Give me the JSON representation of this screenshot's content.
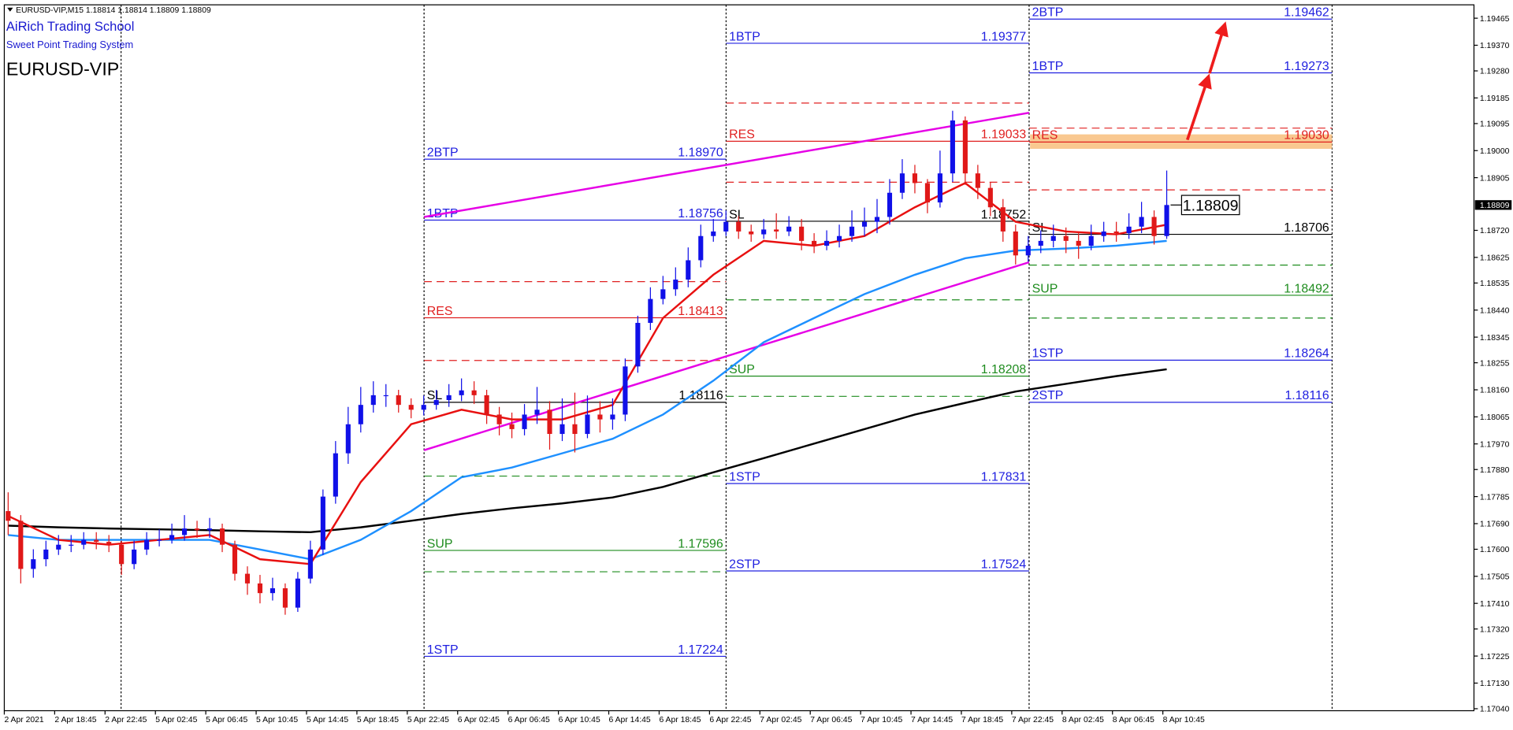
{
  "chart_data": {
    "type": "candlestick",
    "ticker_line": "EURUSD-VIP,M15 1.18814 1.18814 1.18809 1.18809",
    "brand": "AiRich Trading School",
    "subtitle": "Sweet Point Trading System",
    "title": "EURUSD-VIP",
    "current_price": 1.18809,
    "ylim": [
      1.17033,
      1.19512
    ],
    "yticks": [
      1.19465,
      {
        "value": 1.1937,
        "label": "1.19370"
      },
      {
        "value": 1.1928,
        "label": "1.19280"
      },
      1.19185,
      1.19095,
      {
        "value": 1.19,
        "label": "1.19000"
      },
      1.18905,
      {
        "value": 1.1872,
        "label": "1.18720"
      },
      1.18625,
      1.18535,
      {
        "value": 1.1844,
        "label": "1.18440"
      },
      1.18345,
      1.18255,
      {
        "value": 1.1816,
        "label": "1.18160"
      },
      1.18065,
      {
        "value": 1.1797,
        "label": "1.17970"
      },
      {
        "value": 1.1788,
        "label": "1.17880"
      },
      1.17785,
      {
        "value": 1.1769,
        "label": "1.17690"
      },
      {
        "value": 1.176,
        "label": "1.17600"
      },
      1.17505,
      {
        "value": 1.1741,
        "label": "1.17410"
      },
      {
        "value": 1.1732,
        "label": "1.17320"
      },
      1.17225,
      {
        "value": 1.1713,
        "label": "1.17130"
      },
      {
        "value": 1.1704,
        "label": "1.17040"
      }
    ],
    "grid": false,
    "categories": [
      "2 Apr 2021",
      "2 Apr 18:45",
      "2 Apr 22:45",
      "5 Apr 02:45",
      "5 Apr 06:45",
      "5 Apr 10:45",
      "5 Apr 14:45",
      "5 Apr 18:45",
      "5 Apr 22:45",
      "6 Apr 02:45",
      "6 Apr 06:45",
      "6 Apr 10:45",
      "6 Apr 14:45",
      "6 Apr 18:45",
      "6 Apr 22:45",
      "7 Apr 02:45",
      "7 Apr 06:45",
      "7 Apr 10:45",
      "7 Apr 14:45",
      "7 Apr 18:45",
      "7 Apr 22:45",
      "8 Apr 02:45",
      "8 Apr 06:45",
      "8 Apr 10:45"
    ],
    "bull_color": "#1010e8",
    "bear_color": "#e01818",
    "open": [
      1.17734,
      1.177,
      1.17531,
      1.17565,
      1.17599,
      1.17616,
      1.17616,
      1.17633,
      1.17626,
      1.17616,
      1.17548,
      1.17599,
      1.17633,
      1.17633,
      1.1765,
      1.17673,
      1.17667,
      1.17673,
      1.17616,
      1.17514,
      1.1748,
      1.17446,
      1.17463,
      1.17395,
      1.17497,
      1.17599,
      1.17785,
      1.17937,
      1.18039,
      1.18107,
      1.18141,
      1.18141,
      1.18107,
      1.1809,
      1.18107,
      1.18124,
      1.18141,
      1.18158,
      1.18141,
      1.18073,
      1.18039,
      1.18022,
      1.18073,
      1.1809,
      1.18005,
      1.18039,
      1.18005,
      1.18073,
      1.18056,
      1.18073,
      1.18242,
      1.18395,
      1.18479,
      1.18513,
      1.18547,
      1.18615,
      1.187,
      1.18716,
      1.1875,
      1.18716,
      1.18706,
      1.18723,
      1.18716,
      1.18733,
      1.18683,
      1.18666,
      1.18683,
      1.187,
      1.18733,
      1.1875,
      1.18767,
      1.18852,
      1.1892,
      1.18886,
      1.18818,
      1.1892,
      1.19106,
      1.1892,
      1.18869,
      1.18801,
      1.18716,
      1.18632,
      1.18666,
      1.18683,
      1.187,
      1.18683,
      1.18666,
      1.187,
      1.18716,
      1.1871,
      1.18733,
      1.18767,
      1.187
    ],
    "high": [
      1.178,
      1.1772,
      1.176,
      1.1763,
      1.1765,
      1.1765,
      1.1766,
      1.1766,
      1.1765,
      1.1763,
      1.1763,
      1.1766,
      1.1767,
      1.1769,
      1.1772,
      1.177,
      1.1771,
      1.1769,
      1.1763,
      1.1754,
      1.1751,
      1.175,
      1.1748,
      1.1752,
      1.1763,
      1.1781,
      1.1798,
      1.181,
      1.1817,
      1.1819,
      1.1818,
      1.1816,
      1.1813,
      1.1814,
      1.1816,
      1.1818,
      1.182,
      1.1819,
      1.1816,
      1.181,
      1.1808,
      1.1811,
      1.1817,
      1.1812,
      1.1813,
      1.1815,
      1.1814,
      1.1812,
      1.1813,
      1.1827,
      1.1842,
      1.1852,
      1.1856,
      1.1859,
      1.1866,
      1.1874,
      1.1876,
      1.1879,
      1.1877,
      1.1874,
      1.1876,
      1.1878,
      1.1877,
      1.1876,
      1.1871,
      1.1872,
      1.1874,
      1.1879,
      1.188,
      1.1883,
      1.189,
      1.1897,
      1.1895,
      1.189,
      1.19,
      1.1914,
      1.1912,
      1.1895,
      1.1889,
      1.1883,
      1.1874,
      1.187,
      1.1872,
      1.1874,
      1.1873,
      1.1871,
      1.1874,
      1.1875,
      1.1875,
      1.1878,
      1.1882,
      1.1879,
      1.1893
    ],
    "low": [
      1.1765,
      1.1748,
      1.175,
      1.1754,
      1.1758,
      1.1759,
      1.176,
      1.176,
      1.1759,
      1.1751,
      1.1753,
      1.1758,
      1.1761,
      1.1762,
      1.1763,
      1.1764,
      1.1764,
      1.1759,
      1.1749,
      1.1744,
      1.1741,
      1.1742,
      1.1737,
      1.1738,
      1.1748,
      1.1758,
      1.1776,
      1.179,
      1.1801,
      1.1808,
      1.181,
      1.1808,
      1.1806,
      1.1807,
      1.1809,
      1.181,
      1.1812,
      1.1811,
      1.1804,
      1.18,
      1.1799,
      1.18,
      1.1804,
      1.1795,
      1.1798,
      1.1794,
      1.1799,
      1.1801,
      1.1802,
      1.1805,
      1.1822,
      1.1837,
      1.1846,
      1.1849,
      1.1852,
      1.1859,
      1.1868,
      1.187,
      1.1869,
      1.1868,
      1.1869,
      1.1869,
      1.187,
      1.1865,
      1.1864,
      1.1865,
      1.1866,
      1.1868,
      1.187,
      1.1871,
      1.1874,
      1.1883,
      1.1885,
      1.1878,
      1.188,
      1.1889,
      1.1888,
      1.1883,
      1.1877,
      1.1868,
      1.186,
      1.1861,
      1.1864,
      1.1866,
      1.1864,
      1.1862,
      1.1865,
      1.1868,
      1.1868,
      1.1869,
      1.1871,
      1.1867,
      1.1869
    ],
    "close": [
      1.177,
      1.17531,
      1.17565,
      1.17599,
      1.17616,
      1.17616,
      1.17633,
      1.17626,
      1.17616,
      1.17548,
      1.17599,
      1.17633,
      1.17633,
      1.1765,
      1.17673,
      1.17667,
      1.17673,
      1.17616,
      1.17514,
      1.1748,
      1.17446,
      1.17463,
      1.17395,
      1.17497,
      1.17599,
      1.17785,
      1.17937,
      1.18039,
      1.18107,
      1.18141,
      1.18141,
      1.18107,
      1.1809,
      1.18107,
      1.18124,
      1.18141,
      1.18158,
      1.18141,
      1.18073,
      1.18039,
      1.18022,
      1.18073,
      1.1809,
      1.18005,
      1.18039,
      1.18005,
      1.18073,
      1.18056,
      1.18073,
      1.18242,
      1.18395,
      1.18479,
      1.18513,
      1.18547,
      1.18615,
      1.187,
      1.18716,
      1.1875,
      1.18716,
      1.18706,
      1.18723,
      1.18716,
      1.18733,
      1.18683,
      1.18666,
      1.18683,
      1.187,
      1.18733,
      1.1875,
      1.18767,
      1.18852,
      1.1892,
      1.18886,
      1.18818,
      1.1892,
      1.19106,
      1.1892,
      1.18869,
      1.18801,
      1.18716,
      1.18632,
      1.18666,
      1.18683,
      1.187,
      1.18683,
      1.18666,
      1.187,
      1.18716,
      1.1871,
      1.18733,
      1.18767,
      1.187,
      1.18809
    ],
    "moving_averages": [
      {
        "color": "#000000",
        "values": [
          1.17683,
          1.17677,
          1.17673,
          1.1767,
          1.17667,
          1.17663,
          1.1766,
          1.17677,
          1.177,
          1.17724,
          1.17744,
          1.17761,
          1.17782,
          1.17819,
          1.1787,
          1.1792,
          1.17971,
          1.18022,
          1.18073,
          1.18114,
          1.18154,
          1.18181,
          1.18208,
          1.18232
        ]
      },
      {
        "color": "#1e90ff",
        "values": [
          1.1765,
          1.17633,
          1.17633,
          1.17633,
          1.17633,
          1.17599,
          1.17565,
          1.17633,
          1.17734,
          1.17853,
          1.17887,
          1.17937,
          1.17988,
          1.18073,
          1.18192,
          1.18327,
          1.18412,
          1.18496,
          1.18564,
          1.18622,
          1.18649,
          1.18656,
          1.18666,
          1.18683
        ]
      },
      {
        "color": "#e81010",
        "values": [
          1.17717,
          1.17633,
          1.17616,
          1.17633,
          1.1765,
          1.17565,
          1.17548,
          1.17836,
          1.18039,
          1.1809,
          1.18056,
          1.18056,
          1.18107,
          1.18412,
          1.18564,
          1.18683,
          1.18666,
          1.187,
          1.18801,
          1.18886,
          1.1875,
          1.18716,
          1.18706,
          1.1874
        ]
      }
    ],
    "trendlines": [
      {
        "color": "#e600e6",
        "values": [
          1.18767,
          1.19133
        ]
      },
      {
        "color": "#e600e6",
        "values": [
          1.17948,
          1.18608
        ]
      }
    ],
    "panels": [
      {
        "levels": [
          {
            "name": "2BTP",
            "value": 1.1897,
            "value_label": "1.18970",
            "color": "#2020e0"
          },
          {
            "name": "1BTP",
            "value": 1.18756,
            "value_label": "1.18756",
            "color": "#2020e0"
          },
          {
            "name": "RES",
            "value": 1.18413,
            "value_label": "1.18413",
            "color": "#e02020"
          },
          {
            "name": "SL",
            "value": 1.18116,
            "value_label": "1.18116",
            "color": "#000000"
          },
          {
            "name": "SUP",
            "value": 1.17596,
            "value_label": "1.17596",
            "color": "#1e8c1e"
          },
          {
            "name": "1STP",
            "value": 1.17224,
            "value_label": "1.17224",
            "color": "#2020e0"
          }
        ],
        "dashed": [
          {
            "value": 1.1854,
            "color": "#e02020"
          },
          {
            "value": 1.18263,
            "color": "#e02020"
          },
          {
            "value": 1.17857,
            "color": "#1e8c1e"
          },
          {
            "value": 1.17521,
            "color": "#1e8c1e"
          }
        ]
      },
      {
        "levels": [
          {
            "name": "1BTP",
            "value": 1.19377,
            "value_label": "1.19377",
            "color": "#2020e0"
          },
          {
            "name": "RES",
            "value": 1.19033,
            "value_label": "1.19033",
            "color": "#e02020"
          },
          {
            "name": "SL",
            "value": 1.18752,
            "value_label": "1.18752",
            "color": "#000000"
          },
          {
            "name": "SUP",
            "value": 1.18208,
            "value_label": "1.18208",
            "color": "#1e8c1e"
          },
          {
            "name": "1STP",
            "value": 1.17831,
            "value_label": "1.17831",
            "color": "#2020e0"
          },
          {
            "name": "2STP",
            "value": 1.17524,
            "value_label": "1.17524",
            "color": "#2020e0"
          }
        ],
        "dashed": [
          {
            "value": 1.19167,
            "color": "#e02020"
          },
          {
            "value": 1.18889,
            "color": "#e02020"
          },
          {
            "value": 1.18476,
            "color": "#1e8c1e"
          },
          {
            "value": 1.18137,
            "color": "#1e8c1e"
          }
        ]
      },
      {
        "levels": [
          {
            "name": "2BTP",
            "value": 1.19462,
            "value_label": "1.19462",
            "color": "#2020e0"
          },
          {
            "name": "1BTP",
            "value": 1.19273,
            "value_label": "1.19273",
            "color": "#2020e0"
          },
          {
            "name": "RES",
            "value": 1.1903,
            "value_label": "1.19030",
            "color": "#e02020",
            "highlight": true
          },
          {
            "name": "SL",
            "value": 1.18706,
            "value_label": "1.18706",
            "color": "#000000"
          },
          {
            "name": "SUP",
            "value": 1.18492,
            "value_label": "1.18492",
            "color": "#1e8c1e"
          },
          {
            "name": "1STP",
            "value": 1.18264,
            "value_label": "1.18264",
            "color": "#2020e0"
          },
          {
            "name": "2STP",
            "value": 1.18116,
            "value_label": "1.18116",
            "color": "#2020e0"
          }
        ],
        "dashed": [
          {
            "value": 1.19079,
            "color": "#e02020"
          },
          {
            "value": 1.18862,
            "color": "#e02020"
          },
          {
            "value": 1.18598,
            "color": "#1e8c1e"
          },
          {
            "value": 1.18412,
            "color": "#1e8c1e"
          }
        ]
      }
    ]
  }
}
